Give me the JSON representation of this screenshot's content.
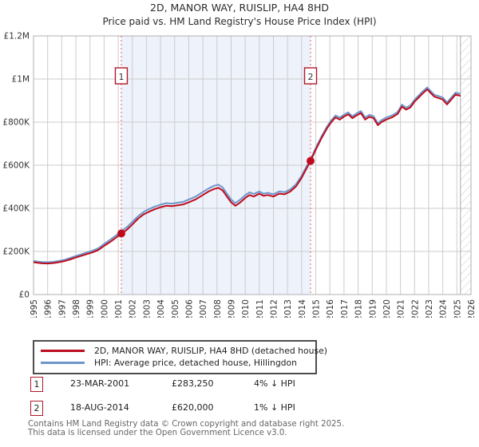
{
  "title": "2D, MANOR WAY, RUISLIP, HA4 8HD",
  "subtitle": "Price paid vs. HM Land Registry's House Price Index (HPI)",
  "chart_data": {
    "type": "line",
    "x_range": [
      1995,
      2026
    ],
    "y_range_k": [
      0,
      1200
    ],
    "grid": true,
    "x_ticks": [
      "1995",
      "1996",
      "1997",
      "1998",
      "1999",
      "2000",
      "2001",
      "2002",
      "2003",
      "2004",
      "2005",
      "2006",
      "2007",
      "2008",
      "2009",
      "2010",
      "2011",
      "2012",
      "2013",
      "2014",
      "2015",
      "2016",
      "2017",
      "2018",
      "2019",
      "2020",
      "2021",
      "2022",
      "2023",
      "2024",
      "2025",
      "2026"
    ],
    "y_ticks": [
      {
        "label": "£0",
        "value_k": 0
      },
      {
        "label": "£200K",
        "value_k": 200
      },
      {
        "label": "£400K",
        "value_k": 400
      },
      {
        "label": "£600K",
        "value_k": 600
      },
      {
        "label": "£800K",
        "value_k": 800
      },
      {
        "label": "£1M",
        "value_k": 1000
      },
      {
        "label": "£1.2M",
        "value_k": 1200
      }
    ],
    "series": [
      {
        "name": "2D, MANOR WAY, RUISLIP, HA4 8HD (detached house)",
        "color": "#bd0c1d",
        "points": [
          [
            1995,
            150
          ],
          [
            1995.3,
            147
          ],
          [
            1995.6,
            145
          ],
          [
            1996,
            144
          ],
          [
            1996.4,
            146
          ],
          [
            1996.8,
            150
          ],
          [
            1997.2,
            155
          ],
          [
            1997.6,
            163
          ],
          [
            1998,
            172
          ],
          [
            1998.4,
            180
          ],
          [
            1998.8,
            188
          ],
          [
            1999.2,
            196
          ],
          [
            1999.6,
            207
          ],
          [
            2000,
            226
          ],
          [
            2000.4,
            243
          ],
          [
            2000.8,
            262
          ],
          [
            2001.22,
            283
          ],
          [
            2001.6,
            300
          ],
          [
            2002,
            325
          ],
          [
            2002.4,
            352
          ],
          [
            2002.8,
            372
          ],
          [
            2003.2,
            385
          ],
          [
            2003.6,
            396
          ],
          [
            2004,
            405
          ],
          [
            2004.4,
            412
          ],
          [
            2004.8,
            410
          ],
          [
            2005.2,
            414
          ],
          [
            2005.6,
            418
          ],
          [
            2006,
            428
          ],
          [
            2006.5,
            442
          ],
          [
            2007,
            462
          ],
          [
            2007.4,
            478
          ],
          [
            2007.8,
            490
          ],
          [
            2008.1,
            495
          ],
          [
            2008.4,
            483
          ],
          [
            2008.7,
            455
          ],
          [
            2009,
            428
          ],
          [
            2009.3,
            412
          ],
          [
            2009.6,
            425
          ],
          [
            2010,
            448
          ],
          [
            2010.3,
            462
          ],
          [
            2010.6,
            455
          ],
          [
            2011,
            468
          ],
          [
            2011.3,
            458
          ],
          [
            2011.6,
            462
          ],
          [
            2012,
            455
          ],
          [
            2012.4,
            468
          ],
          [
            2012.8,
            465
          ],
          [
            2013.2,
            478
          ],
          [
            2013.6,
            502
          ],
          [
            2014,
            542
          ],
          [
            2014.3,
            580
          ],
          [
            2014.63,
            620
          ],
          [
            2015,
            672
          ],
          [
            2015.4,
            725
          ],
          [
            2015.8,
            772
          ],
          [
            2016.1,
            800
          ],
          [
            2016.4,
            822
          ],
          [
            2016.7,
            812
          ],
          [
            2017,
            826
          ],
          [
            2017.3,
            836
          ],
          [
            2017.6,
            818
          ],
          [
            2017.9,
            832
          ],
          [
            2018.2,
            842
          ],
          [
            2018.5,
            812
          ],
          [
            2018.8,
            825
          ],
          [
            2019.1,
            818
          ],
          [
            2019.4,
            786
          ],
          [
            2019.7,
            802
          ],
          [
            2020,
            812
          ],
          [
            2020.4,
            822
          ],
          [
            2020.8,
            838
          ],
          [
            2021.1,
            872
          ],
          [
            2021.4,
            858
          ],
          [
            2021.7,
            868
          ],
          [
            2022,
            895
          ],
          [
            2022.3,
            915
          ],
          [
            2022.6,
            935
          ],
          [
            2022.9,
            952
          ],
          [
            2023.1,
            938
          ],
          [
            2023.4,
            918
          ],
          [
            2023.7,
            912
          ],
          [
            2024,
            905
          ],
          [
            2024.3,
            882
          ],
          [
            2024.6,
            905
          ],
          [
            2024.9,
            928
          ],
          [
            2025.25,
            922
          ]
        ]
      },
      {
        "name": "HPI: Average price, detached house, Hillingdon",
        "color": "#6e96ca",
        "points": [
          [
            1995,
            156
          ],
          [
            1995.3,
            153
          ],
          [
            1995.6,
            151
          ],
          [
            1996,
            150
          ],
          [
            1996.4,
            152
          ],
          [
            1996.8,
            156
          ],
          [
            1997.2,
            161
          ],
          [
            1997.6,
            170
          ],
          [
            1998,
            179
          ],
          [
            1998.4,
            187
          ],
          [
            1998.8,
            196
          ],
          [
            1999.2,
            204
          ],
          [
            1999.6,
            215
          ],
          [
            2000,
            235
          ],
          [
            2000.4,
            253
          ],
          [
            2000.8,
            272
          ],
          [
            2001.22,
            295
          ],
          [
            2001.6,
            312
          ],
          [
            2002,
            337
          ],
          [
            2002.4,
            363
          ],
          [
            2002.8,
            383
          ],
          [
            2003.2,
            397
          ],
          [
            2003.6,
            408
          ],
          [
            2004,
            417
          ],
          [
            2004.4,
            424
          ],
          [
            2004.8,
            422
          ],
          [
            2005.2,
            426
          ],
          [
            2005.6,
            430
          ],
          [
            2006,
            441
          ],
          [
            2006.5,
            455
          ],
          [
            2007,
            476
          ],
          [
            2007.4,
            492
          ],
          [
            2007.8,
            505
          ],
          [
            2008.1,
            510
          ],
          [
            2008.4,
            497
          ],
          [
            2008.7,
            468
          ],
          [
            2009,
            441
          ],
          [
            2009.3,
            424
          ],
          [
            2009.6,
            438
          ],
          [
            2010,
            461
          ],
          [
            2010.3,
            474
          ],
          [
            2010.6,
            467
          ],
          [
            2011,
            478
          ],
          [
            2011.3,
            468
          ],
          [
            2011.6,
            472
          ],
          [
            2012,
            465
          ],
          [
            2012.4,
            478
          ],
          [
            2012.8,
            475
          ],
          [
            2013.2,
            488
          ],
          [
            2013.6,
            512
          ],
          [
            2014,
            552
          ],
          [
            2014.3,
            589
          ],
          [
            2014.63,
            627
          ],
          [
            2015,
            680
          ],
          [
            2015.4,
            733
          ],
          [
            2015.8,
            780
          ],
          [
            2016.1,
            809
          ],
          [
            2016.4,
            831
          ],
          [
            2016.7,
            821
          ],
          [
            2017,
            835
          ],
          [
            2017.3,
            845
          ],
          [
            2017.6,
            827
          ],
          [
            2017.9,
            841
          ],
          [
            2018.2,
            851
          ],
          [
            2018.5,
            821
          ],
          [
            2018.8,
            834
          ],
          [
            2019.1,
            827
          ],
          [
            2019.4,
            795
          ],
          [
            2019.7,
            811
          ],
          [
            2020,
            821
          ],
          [
            2020.4,
            831
          ],
          [
            2020.8,
            847
          ],
          [
            2021.1,
            881
          ],
          [
            2021.4,
            867
          ],
          [
            2021.7,
            877
          ],
          [
            2022,
            904
          ],
          [
            2022.3,
            924
          ],
          [
            2022.6,
            944
          ],
          [
            2022.9,
            961
          ],
          [
            2023.1,
            947
          ],
          [
            2023.4,
            927
          ],
          [
            2023.7,
            921
          ],
          [
            2024,
            914
          ],
          [
            2024.3,
            891
          ],
          [
            2024.6,
            914
          ],
          [
            2024.9,
            937
          ],
          [
            2025.25,
            931
          ]
        ]
      }
    ],
    "sales": [
      {
        "n": "1",
        "year": 2001.22,
        "value_k": 283.25
      },
      {
        "n": "2",
        "year": 2014.63,
        "value_k": 620
      }
    ],
    "shaded_region": [
      2001.22,
      2014.63
    ],
    "hatch_start": 2025.25,
    "colors": {
      "band": "#eef2fb",
      "grid": "#cccccc",
      "border": "#b0b0b0",
      "marker_line": "#f05a5a",
      "marker_box_border": "#b01827",
      "hatch_line": "#c8c8c8",
      "tick_text": "#333333"
    }
  },
  "legend": [
    {
      "label": "2D, MANOR WAY, RUISLIP, HA4 8HD (detached house)",
      "color": "#bd0c1d"
    },
    {
      "label": "HPI: Average price, detached house, Hillingdon",
      "color": "#6e96ca"
    }
  ],
  "annotations": [
    {
      "num": "1",
      "date": "23-MAR-2001",
      "price": "£283,250",
      "hpi": "4% ↓ HPI"
    },
    {
      "num": "2",
      "date": "18-AUG-2014",
      "price": "£620,000",
      "hpi": "1% ↓ HPI"
    }
  ],
  "footer": {
    "line1": "Contains HM Land Registry data © Crown copyright and database right 2025.",
    "line2": "This data is licensed under the Open Government Licence v3.0."
  }
}
